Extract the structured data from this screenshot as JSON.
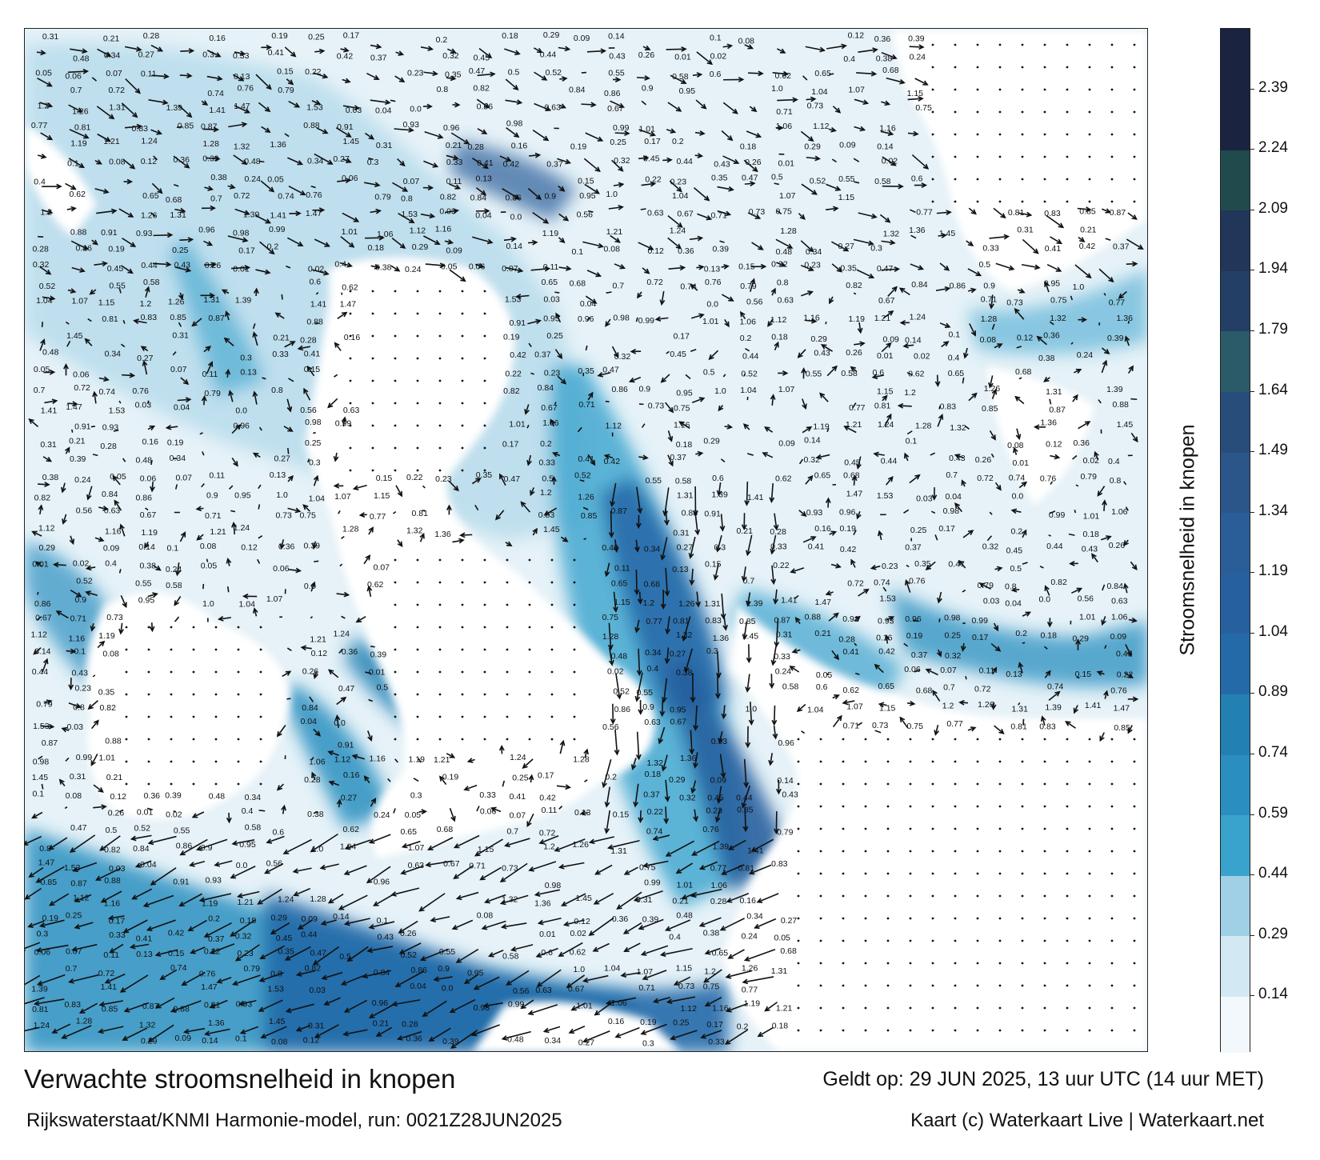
{
  "map": {
    "title": "Verwachte stroomsnelheid in knopen",
    "model_run": "Rijkswaterstaat/KNMI Harmonie-model, run: 0021Z28JUN2025",
    "valid_time": "Geldt op: 29 JUN 2025, 13 uur UTC (14 uur MET)",
    "credit": "Kaart (c) Waterkaart Live | Waterkaart.net",
    "land_color": "#ffffff",
    "arrow_color": "#111111"
  },
  "colorbar": {
    "label": "Stroomsnelheid in knopen",
    "ticks": [
      "2.39",
      "2.24",
      "2.09",
      "1.94",
      "1.79",
      "1.64",
      "1.49",
      "1.34",
      "1.19",
      "1.04",
      "0.89",
      "0.74",
      "0.59",
      "0.44",
      "0.29",
      "0.14"
    ],
    "tick_values": [
      2.39,
      2.24,
      2.09,
      1.94,
      1.79,
      1.64,
      1.49,
      1.34,
      1.19,
      1.04,
      0.89,
      0.74,
      0.59,
      0.44,
      0.29,
      0.14
    ],
    "min": 0.0,
    "max": 2.54,
    "bands": [
      {
        "from": 0.0,
        "to": 0.14,
        "color": "#f2f8fc"
      },
      {
        "from": 0.14,
        "to": 0.29,
        "color": "#d2e8f2"
      },
      {
        "from": 0.29,
        "to": 0.44,
        "color": "#9fd0e6"
      },
      {
        "from": 0.44,
        "to": 0.59,
        "color": "#3aa3cd"
      },
      {
        "from": 0.59,
        "to": 0.74,
        "color": "#2a8fc0"
      },
      {
        "from": 0.74,
        "to": 0.89,
        "color": "#2380b3"
      },
      {
        "from": 0.89,
        "to": 1.04,
        "color": "#2469a8"
      },
      {
        "from": 1.04,
        "to": 1.19,
        "color": "#27609f"
      },
      {
        "from": 1.19,
        "to": 1.34,
        "color": "#2a5e99"
      },
      {
        "from": 1.34,
        "to": 1.49,
        "color": "#2a5689"
      },
      {
        "from": 1.49,
        "to": 1.64,
        "color": "#294d7a"
      },
      {
        "from": 1.64,
        "to": 1.79,
        "color": "#2b5a68"
      },
      {
        "from": 1.79,
        "to": 1.94,
        "color": "#243f66"
      },
      {
        "from": 1.94,
        "to": 2.09,
        "color": "#213658"
      },
      {
        "from": 2.09,
        "to": 2.24,
        "color": "#214a4d"
      },
      {
        "from": 2.24,
        "to": 2.54,
        "color": "#1a2340"
      }
    ]
  },
  "speed_labels": [
    "0.31",
    "0.21",
    "0.28",
    "0.16",
    "0.19",
    "0.25",
    "0.17",
    "0.2",
    "0.18",
    "0.29",
    "0.09",
    "0.14",
    "0.1",
    "0.08",
    "0.12",
    "0.36",
    "0.39",
    "0.48",
    "0.34",
    "0.27",
    "0.3",
    "0.33",
    "0.41",
    "0.42",
    "0.37",
    "0.32",
    "0.45",
    "0.44",
    "0.43",
    "0.26",
    "0.01",
    "0.02",
    "0.4",
    "0.38",
    "0.24",
    "0.05",
    "0.06",
    "0.07",
    "0.11",
    "0.13",
    "0.15",
    "0.22",
    "0.23",
    "0.35",
    "0.47",
    "0.5",
    "0.52",
    "0.55",
    "0.58",
    "0.6",
    "0.62",
    "0.65",
    "0.68",
    "0.7",
    "0.72",
    "0.74",
    "0.76",
    "0.79",
    "0.8",
    "0.82",
    "0.84",
    "0.86",
    "0.9",
    "0.95",
    "1.0",
    "1.04",
    "1.07",
    "1.15",
    "1.2",
    "1.26",
    "1.31",
    "1.39",
    "1.41",
    "1.47",
    "1.53",
    "0.03",
    "0.04",
    "0.0",
    "0.56",
    "0.63",
    "0.67",
    "0.71",
    "0.73",
    "0.75",
    "0.77",
    "0.81",
    "0.83",
    "0.85",
    "0.87",
    "0.88",
    "0.91",
    "0.93",
    "0.96",
    "0.98",
    "0.99",
    "1.01",
    "1.06",
    "1.12",
    "1.16",
    "1.19",
    "1.21",
    "1.24",
    "1.28",
    "1.32",
    "1.36",
    "1.45"
  ]
}
